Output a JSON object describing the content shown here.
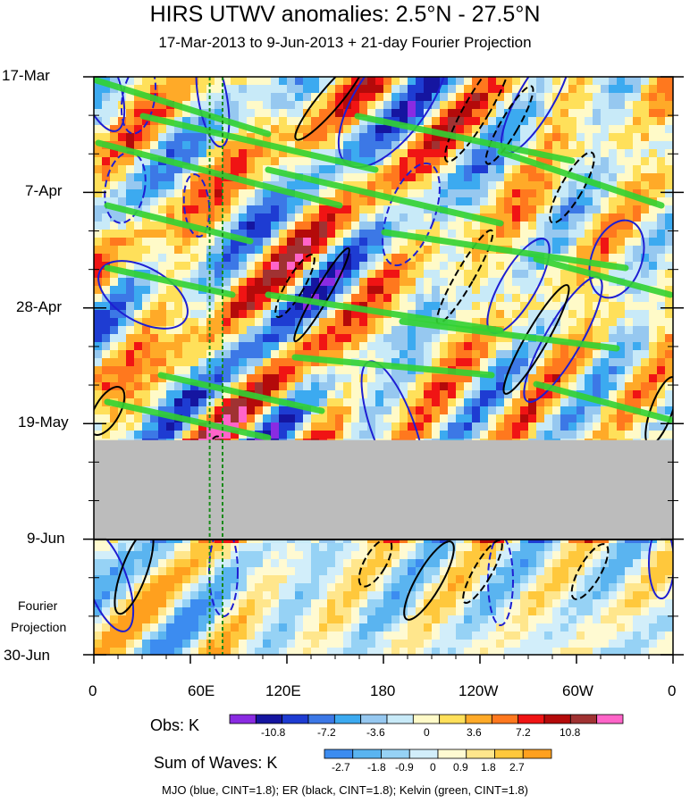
{
  "chart_data": {
    "type": "heatmap",
    "title": "HIRS UTWV anomalies: 2.5°N - 27.5°N",
    "subtitle": "17-Mar-2013 to 9-Jun-2013 + 21-day Fourier Projection",
    "x_axis": {
      "label": "",
      "ticks": [
        "0",
        "60E",
        "120E",
        "180",
        "120W",
        "60W",
        "0"
      ],
      "range_deg_east": [
        0,
        360
      ]
    },
    "y_axis": {
      "label": "",
      "ticks": [
        "17-Mar",
        "7-Apr",
        "28-Apr",
        "19-May",
        "9-Jun",
        "30-Jun"
      ],
      "direction": "time increases downward"
    },
    "projection_label_lines": [
      "Fourier",
      "Projection"
    ],
    "reference_longitudes_dashed_green": [
      72,
      80
    ],
    "missing_data_band": {
      "from_day": 66,
      "to_day": 84
    },
    "obs_colorbar": {
      "label": "Obs: K",
      "tick_labels": [
        "-10.8",
        "-7.2",
        "-3.6",
        "0",
        "3.6",
        "7.2",
        "10.8"
      ],
      "colors": [
        "#8a2be2",
        "#1515a0",
        "#1e3cd2",
        "#3c78e6",
        "#3caaf0",
        "#96c8f0",
        "#c8eaf8",
        "#fffac8",
        "#ffe05a",
        "#ffaa28",
        "#ff781e",
        "#f01414",
        "#b40a0a",
        "#a03232",
        "#ff64c8"
      ]
    },
    "waves_colorbar": {
      "label": "Sum of Waves: K",
      "tick_labels": [
        "-2.7",
        "-1.8",
        "-0.9",
        "0",
        "0.9",
        "1.8",
        "2.7"
      ],
      "colors": [
        "#3c8cf0",
        "#5ab4f0",
        "#96d2f5",
        "#d2eefa",
        "#fffad2",
        "#ffe68c",
        "#ffc83c",
        "#ffa01e"
      ]
    },
    "contour_legend": "MJO (blue, CINT=1.8); ER (black, CINT=1.8); Kelvin (green, CINT=1.8)",
    "contour_colors": {
      "mjo": "#1e1ed2",
      "er": "#000000",
      "kelvin": "#32d232"
    }
  }
}
